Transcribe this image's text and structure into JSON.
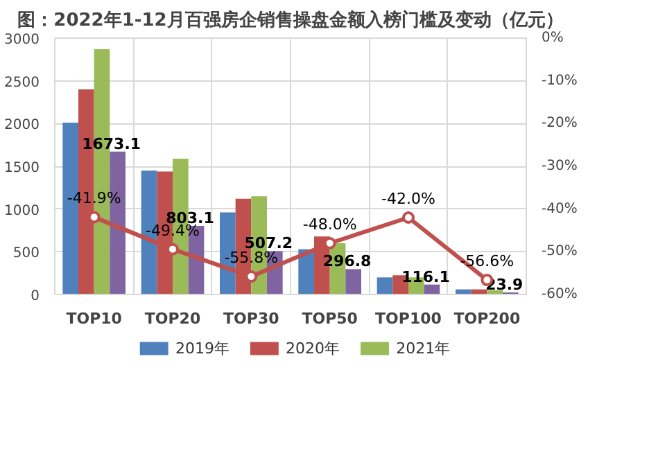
{
  "chart_data": {
    "type": "bar",
    "title": "图：2022年1-12月百强房企销售操盘金额入榜门槛及变动（亿元）",
    "categories": [
      "TOP10",
      "TOP20",
      "TOP30",
      "TOP50",
      "TOP100",
      "TOP200"
    ],
    "series": [
      {
        "name": "2019年",
        "color": "#4f81bd",
        "values": [
          2010,
          1450,
          960,
          530,
          200,
          60
        ]
      },
      {
        "name": "2020年",
        "color": "#c0504d",
        "values": [
          2400,
          1440,
          1120,
          680,
          225,
          60
        ]
      },
      {
        "name": "2021年",
        "color": "#9bbb59",
        "values": [
          2870,
          1590,
          1150,
          600,
          200,
          50
        ]
      },
      {
        "color": "#8064a2",
        "values": [
          1673.1,
          803.1,
          507.2,
          296.8,
          116.1,
          23.9
        ],
        "value_labels": [
          "1673.1",
          "803.1",
          "507.2",
          "296.8",
          "116.1",
          "23.9"
        ]
      },
      {
        "type": "line",
        "axis": "y2",
        "color": "#c0504d",
        "marker": "circle",
        "values": [
          -41.9,
          -49.4,
          -55.8,
          -48.0,
          -42.0,
          -56.6
        ],
        "value_labels": [
          "-41.9%",
          "-49.4%",
          "-55.8%",
          "-48.0%",
          "-42.0%",
          "-56.6%"
        ]
      }
    ],
    "ylim": [
      0,
      3000
    ],
    "yticks": [
      0,
      500,
      1000,
      1500,
      2000,
      2500,
      3000
    ],
    "y2lim": [
      -60,
      0
    ],
    "y2ticks": [
      {
        "value": 0,
        "label": "0%"
      },
      {
        "value": -10,
        "label": "-10%"
      },
      {
        "value": -20,
        "label": "-20%"
      },
      {
        "value": -30,
        "label": "-30%"
      },
      {
        "value": -40,
        "label": "-40%"
      },
      {
        "value": -50,
        "label": "-50%"
      },
      {
        "value": -60,
        "label": "-60%"
      }
    ],
    "grid": true,
    "legend": "bottom"
  }
}
